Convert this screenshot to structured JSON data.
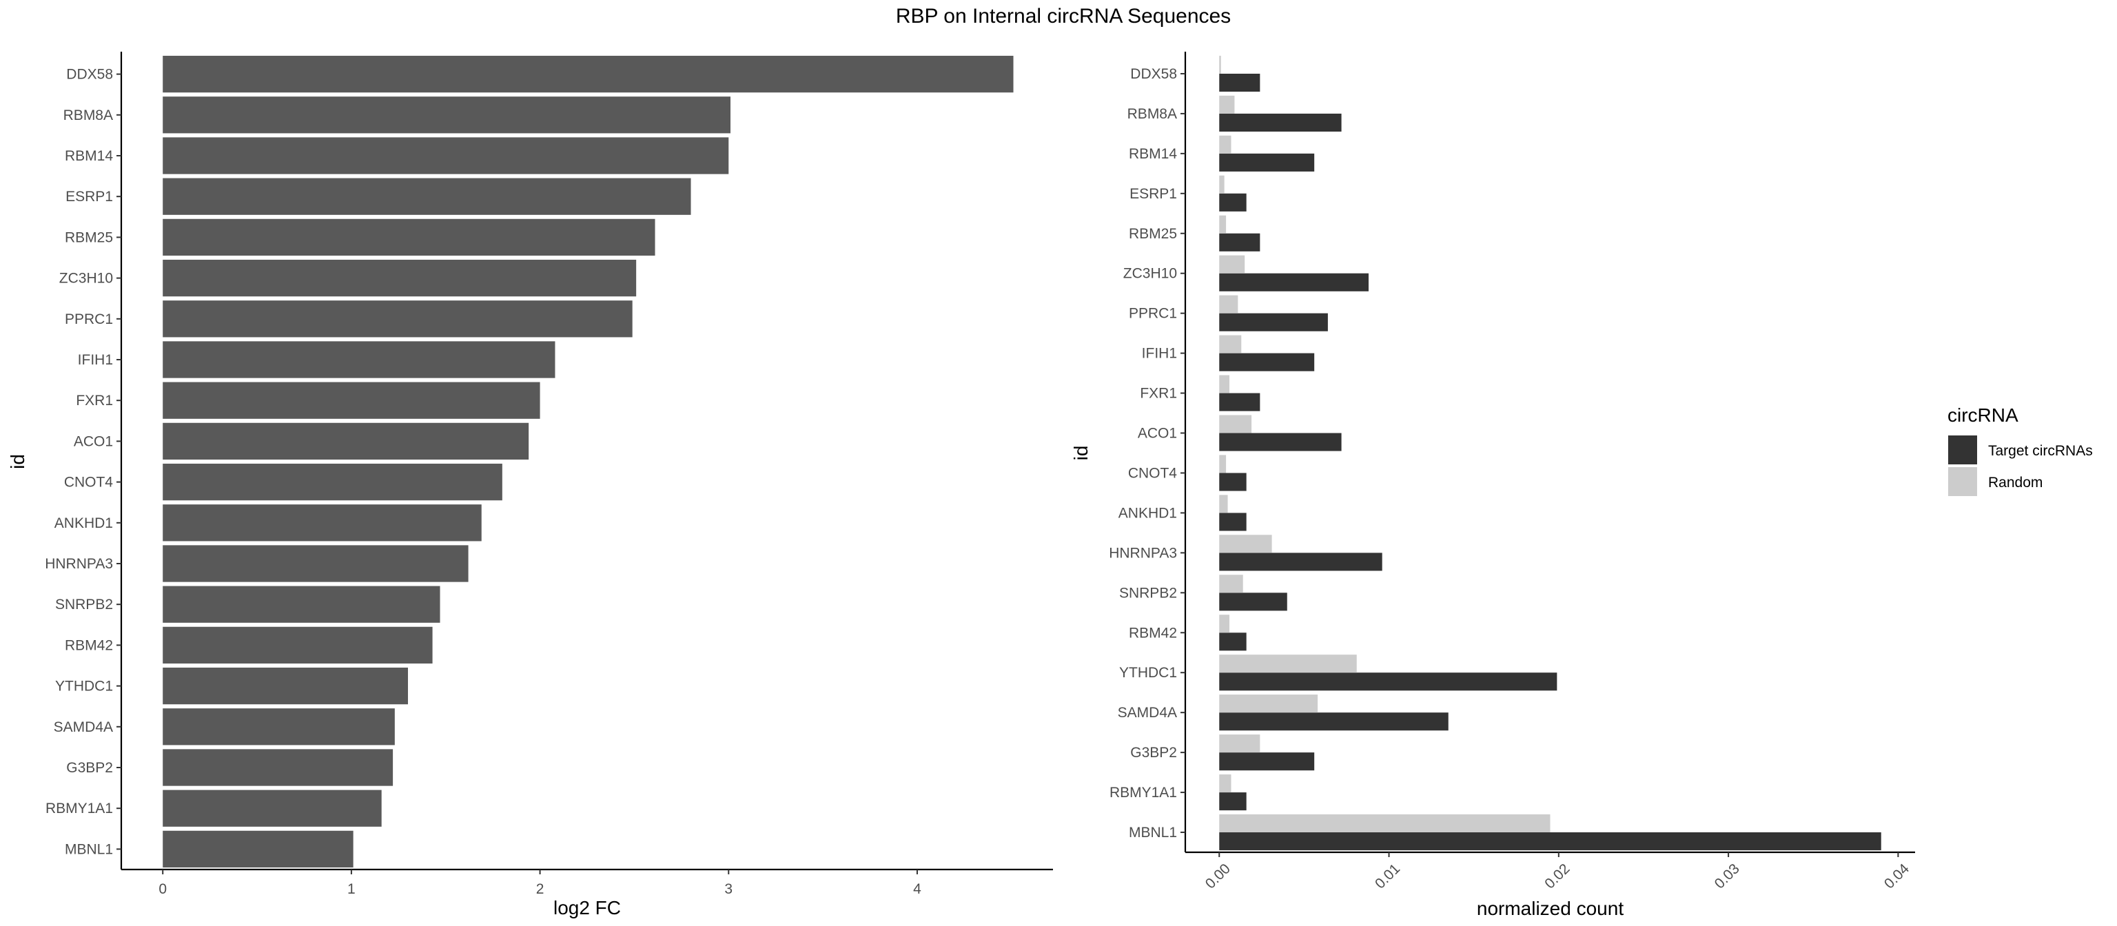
{
  "title": "RBP on Internal circRNA Sequences",
  "colors": {
    "bar_left": "#595959",
    "target": "#333333",
    "random": "#cccccc",
    "axis": "#000000",
    "tick_text": "#4d4d4d"
  },
  "chart_data": [
    {
      "type": "bar",
      "orientation": "horizontal",
      "xlabel": "log2 FC",
      "ylabel": "id",
      "xlim": [
        -0.22,
        4.72
      ],
      "xticks": [
        0,
        1,
        2,
        3,
        4
      ],
      "xtick_labels": [
        "0",
        "1",
        "2",
        "3",
        "4"
      ],
      "grid": false,
      "categories": [
        "DDX58",
        "RBM8A",
        "RBM14",
        "ESRP1",
        "RBM25",
        "ZC3H10",
        "PPRC1",
        "IFIH1",
        "FXR1",
        "ACO1",
        "CNOT4",
        "ANKHD1",
        "HNRNPA3",
        "SNRPB2",
        "RBM42",
        "YTHDC1",
        "SAMD4A",
        "G3BP2",
        "RBMY1A1",
        "MBNL1"
      ],
      "values": [
        4.51,
        3.01,
        3.0,
        2.8,
        2.61,
        2.51,
        2.49,
        2.08,
        2.0,
        1.94,
        1.8,
        1.69,
        1.62,
        1.47,
        1.43,
        1.3,
        1.23,
        1.22,
        1.16,
        1.01
      ]
    },
    {
      "type": "bar",
      "orientation": "horizontal",
      "xlabel": "normalized count",
      "ylabel": "id",
      "xlim": [
        -0.002,
        0.041
      ],
      "xticks": [
        0,
        0.01,
        0.02,
        0.03,
        0.04
      ],
      "xtick_labels": [
        "0.00",
        "0.01",
        "0.02",
        "0.03",
        "0.04"
      ],
      "grid": false,
      "categories": [
        "DDX58",
        "RBM8A",
        "RBM14",
        "ESRP1",
        "RBM25",
        "ZC3H10",
        "PPRC1",
        "IFIH1",
        "FXR1",
        "ACO1",
        "CNOT4",
        "ANKHD1",
        "HNRNPA3",
        "SNRPB2",
        "RBM42",
        "YTHDC1",
        "SAMD4A",
        "G3BP2",
        "RBMY1A1",
        "MBNL1"
      ],
      "series": [
        {
          "name": "Target circRNAs",
          "values": [
            0.0024,
            0.0072,
            0.0056,
            0.0016,
            0.0024,
            0.0088,
            0.0064,
            0.0056,
            0.0024,
            0.0072,
            0.0016,
            0.0016,
            0.0096,
            0.004,
            0.0016,
            0.0199,
            0.0135,
            0.0056,
            0.0016,
            0.039
          ]
        },
        {
          "name": "Random",
          "values": [
            0.0001,
            0.0009,
            0.0007,
            0.0003,
            0.0004,
            0.0015,
            0.0011,
            0.0013,
            0.0006,
            0.0019,
            0.0004,
            0.0005,
            0.0031,
            0.0014,
            0.0006,
            0.0081,
            0.0058,
            0.0024,
            0.0007,
            0.0195
          ]
        }
      ],
      "legend": {
        "title": "circRNA",
        "placement": "right"
      }
    }
  ]
}
